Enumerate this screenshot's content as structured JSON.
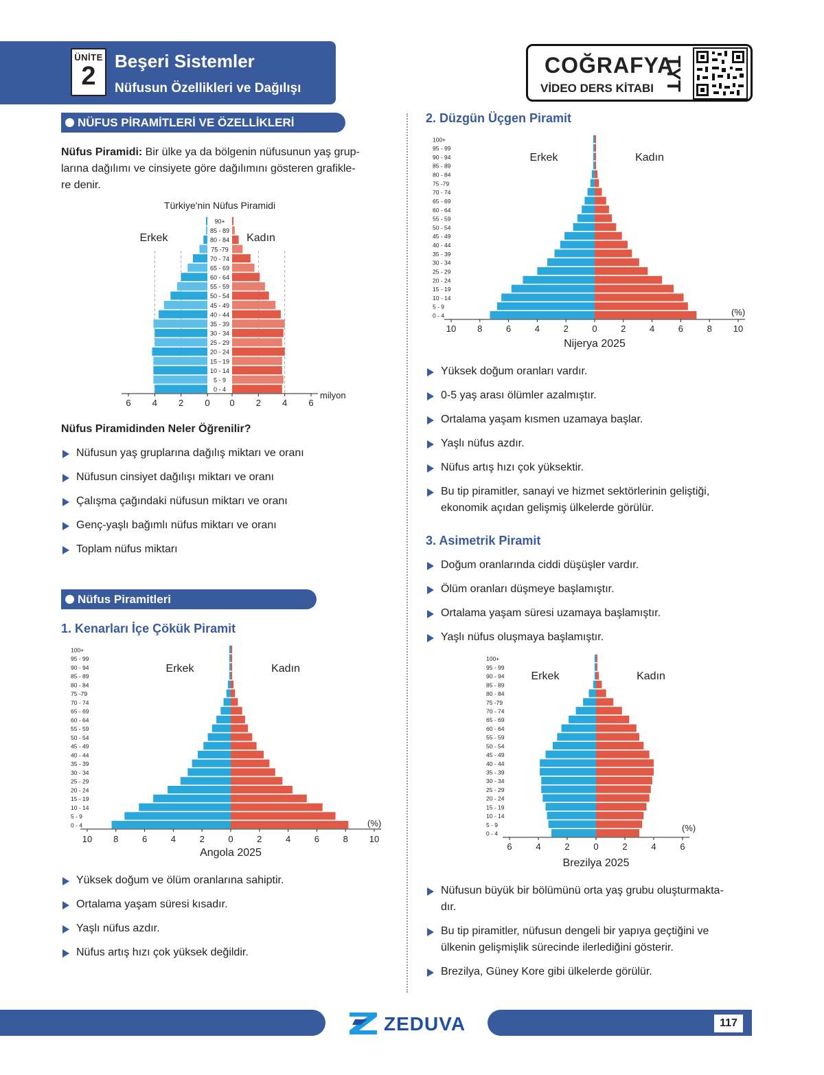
{
  "header": {
    "unit_label": "ÜNİTE",
    "unit_number": "2",
    "title": "Beşeri Sistemler",
    "subtitle": "Nüfusun Özellikleri ve Dağılışı"
  },
  "brand": {
    "line1": "COĞRAFYA",
    "line2": "VİDEO DERS KİTABI",
    "exam": "TYT"
  },
  "left": {
    "section1": "NÜFUS PİRAMİTLERİ VE ÖZELLİKLERİ",
    "def_term": "Nüfus Piramidi:",
    "def_text_1": " Bir ülke ya da bölgenin nüfusunun yaş grup-",
    "def_text_2": "larına dağılımı ve cinsiyete göre dağılımını gösteren grafikle-",
    "def_text_3": "re denir.",
    "learn_title": "Nüfus Piramidinden Neler Öğrenilir?",
    "learn_items": [
      "Nüfusun yaş gruplarına dağılış miktarı ve oranı",
      "Nüfusun cinsiyet dağılışı miktarı ve oranı",
      "Çalışma çağındaki nüfusun miktarı ve oranı",
      "Genç-yaşlı bağımlı nüfus miktarı ve oranı",
      "Toplam nüfus miktarı"
    ],
    "section2": "Nüfus Piramitleri",
    "type1_title": "1. Kenarları İçe Çökük Piramit",
    "type1_items": [
      "Yüksek doğum ve ölüm oranlarına sahiptir.",
      "Ortalama yaşam süresi kısadır.",
      "Yaşlı nüfus azdır.",
      "Nüfus artış hızı çok yüksek değildir."
    ]
  },
  "right": {
    "type2_title": "2. Düzgün Üçgen Piramit",
    "type2_items": [
      "Yüksek doğum oranları vardır.",
      "0-5 yaş arası ölümler azalmıştır.",
      "Ortalama yaşam kısmen uzamaya başlar.",
      "Yaşlı nüfus azdır.",
      "Nüfus artış hızı çok yüksektir."
    ],
    "type2_last_1": "Bu tip piramitler, sanayi ve hizmet sektörlerinin geliştiği,",
    "type2_last_2": "ekonomik açıdan gelişmiş ülkelerde görülür.",
    "type3_title": "3. Asimetrik Piramit",
    "type3_items": [
      "Doğum oranlarında ciddi düşüşler vardır.",
      "Ölüm oranları düşmeye başlamıştır.",
      "Ortalama yaşam süresi uzamaya başlamıştır.",
      "Yaşlı nüfus oluşmaya başlamıştır."
    ],
    "type3_after_1a": "Nüfusun büyük bir bölümünü orta yaş grubu oluşturmakta-",
    "type3_after_1b": "dır.",
    "type3_after_2a": "Bu tip piramitler, nüfusun dengeli bir yapıya geçtiğini ve",
    "type3_after_2b": "ülkenin gelişmişlik sürecinde ilerlediğini gösterir.",
    "type3_after_3": "Brezilya, Güney Kore gibi ülkelerde görülür."
  },
  "footer": {
    "logo": "ZEDUVA",
    "page": "117"
  },
  "chart_data": [
    {
      "type": "bar",
      "id": "turkiye",
      "title": "Türkiye'nin Nüfus Piramidi",
      "left_label": "Erkek",
      "right_label": "Kadın",
      "unit": "milyon",
      "max": 6,
      "ticks": [
        6,
        4,
        2,
        0
      ],
      "male_color": "#2aa8dc",
      "female_color": "#e05a47",
      "categories": [
        "0 - 4",
        "5 - 9",
        "10 - 14",
        "15 - 19",
        "20 - 24",
        "25 - 29",
        "30 - 34",
        "35 - 39",
        "40 - 44",
        "45 - 49",
        "50 - 54",
        "55 - 59",
        "60 - 64",
        "65 - 69",
        "70 - 74",
        "75 -79",
        "80 - 84",
        "85 - 89",
        "90+"
      ],
      "series": [
        {
          "name": "Erkek",
          "values": [
            4.0,
            4.1,
            4.1,
            4.1,
            4.2,
            4.0,
            4.0,
            4.1,
            3.7,
            3.3,
            2.8,
            2.3,
            2.0,
            1.5,
            1.1,
            0.6,
            0.3,
            0.1,
            0.05
          ]
        },
        {
          "name": "Kadın",
          "values": [
            3.8,
            3.9,
            3.8,
            3.8,
            4.0,
            3.8,
            3.9,
            4.0,
            3.7,
            3.3,
            2.8,
            2.5,
            2.1,
            1.7,
            1.4,
            0.8,
            0.5,
            0.2,
            0.1
          ]
        }
      ]
    },
    {
      "type": "bar",
      "id": "angola",
      "title": "Angola 2025",
      "left_label": "Erkek",
      "right_label": "Kadın",
      "unit": "(%)",
      "max": 10,
      "ticks": [
        10,
        8,
        6,
        4,
        2,
        0
      ],
      "male_color": "#2aa8dc",
      "female_color": "#e05a47",
      "categories": [
        "0 - 4",
        "5 - 9",
        "10 - 14",
        "15 - 19",
        "20 - 24",
        "25 - 29",
        "30 - 34",
        "35 - 39",
        "40 - 44",
        "45 - 49",
        "50 - 54",
        "55 - 59",
        "60 - 64",
        "65 - 69",
        "70 - 74",
        "75 -79",
        "80 - 84",
        "85 - 89",
        "90 - 94",
        "95 - 99",
        "100+"
      ],
      "series": [
        {
          "name": "Erkek",
          "values": [
            8.3,
            7.4,
            6.4,
            5.4,
            4.4,
            3.5,
            3.0,
            2.7,
            2.3,
            1.9,
            1.6,
            1.3,
            1.0,
            0.7,
            0.5,
            0.3,
            0.2,
            0.1,
            0.1,
            0.1,
            0.1
          ]
        },
        {
          "name": "Kadın",
          "values": [
            8.2,
            7.3,
            6.4,
            5.3,
            4.3,
            3.6,
            3.1,
            2.7,
            2.3,
            1.8,
            1.5,
            1.2,
            1.0,
            0.8,
            0.5,
            0.3,
            0.2,
            0.1,
            0.1,
            0.1,
            0.1
          ]
        }
      ]
    },
    {
      "type": "bar",
      "id": "nijerya",
      "title": "Nijerya 2025",
      "left_label": "Erkek",
      "right_label": "Kadın",
      "unit": "(%)",
      "max": 10,
      "ticks": [
        10,
        8,
        6,
        4,
        2,
        0
      ],
      "male_color": "#2aa8dc",
      "female_color": "#e05a47",
      "categories": [
        "0 - 4",
        "5 - 9",
        "10 - 14",
        "15 - 19",
        "20 - 24",
        "25 - 29",
        "30 - 34",
        "35 - 39",
        "40 - 44",
        "45 - 49",
        "50 - 54",
        "55 - 59",
        "60 - 64",
        "65 - 69",
        "70 - 74",
        "75 -79",
        "80 - 84",
        "85 - 89",
        "90 - 94",
        "95 - 99",
        "100+"
      ],
      "series": [
        {
          "name": "Erkek",
          "values": [
            7.3,
            6.8,
            6.5,
            5.8,
            5.0,
            4.0,
            3.3,
            2.8,
            2.4,
            2.1,
            1.5,
            1.2,
            0.9,
            0.7,
            0.5,
            0.3,
            0.2,
            0.1,
            0.1,
            0.1,
            0.1
          ]
        },
        {
          "name": "Kadın",
          "values": [
            7.1,
            6.5,
            6.2,
            5.5,
            4.7,
            3.7,
            3.1,
            2.6,
            2.3,
            1.9,
            1.5,
            1.2,
            1.0,
            0.8,
            0.5,
            0.3,
            0.2,
            0.1,
            0.1,
            0.1,
            0.1
          ]
        }
      ]
    },
    {
      "type": "bar",
      "id": "brezilya",
      "title": "Brezilya 2025",
      "left_label": "Erkek",
      "right_label": "Kadın",
      "unit": "(%)",
      "max": 6,
      "ticks": [
        6,
        4,
        2,
        0
      ],
      "male_color": "#2aa8dc",
      "female_color": "#e05a47",
      "categories": [
        "0 - 4",
        "5 - 9",
        "10 - 14",
        "15 - 19",
        "20 - 24",
        "25 - 29",
        "30 - 34",
        "35 - 39",
        "40 - 44",
        "45 - 49",
        "50 - 54",
        "55 - 59",
        "60 - 64",
        "65 - 69",
        "70 - 74",
        "75 -79",
        "80 - 84",
        "85 - 89",
        "90 - 94",
        "95 - 99",
        "100+"
      ],
      "series": [
        {
          "name": "Erkek",
          "values": [
            3.1,
            3.3,
            3.4,
            3.5,
            3.7,
            3.8,
            3.8,
            3.9,
            3.9,
            3.5,
            3.0,
            2.7,
            2.4,
            1.9,
            1.4,
            0.9,
            0.5,
            0.2,
            0.1,
            0.1,
            0.05
          ]
        },
        {
          "name": "Kadın",
          "values": [
            3.0,
            3.2,
            3.3,
            3.5,
            3.7,
            3.8,
            3.9,
            4.0,
            4.0,
            3.7,
            3.3,
            3.0,
            2.8,
            2.3,
            1.8,
            1.2,
            0.7,
            0.4,
            0.2,
            0.1,
            0.05
          ]
        }
      ]
    }
  ]
}
